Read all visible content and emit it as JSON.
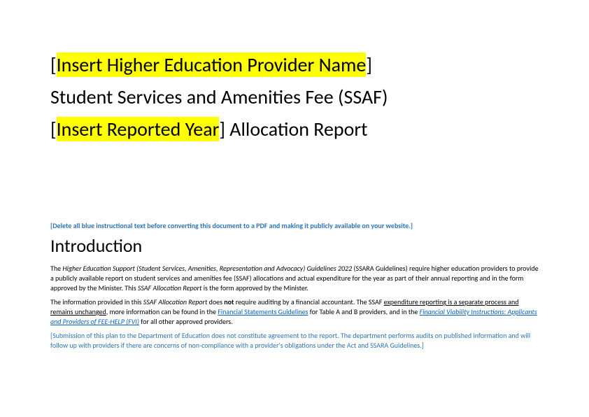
{
  "title": {
    "line1_prefix": "[",
    "line1_highlight": "Insert Higher Education Provider Name",
    "line1_suffix": "]",
    "line2": "Student Services and Amenities Fee (SSAF)",
    "line3_prefix": "[",
    "line3_highlight": "Insert Reported Year",
    "line3_suffix": "] Allocation Report"
  },
  "instruction_blue": "[Delete all blue instructional text before converting this document to a PDF and making it publicly available on your website.]",
  "heading_intro": "Introduction",
  "para1": {
    "t1": "The ",
    "italic1": "Higher Education Support (Student Services, Amenities, Representation and Advocacy) Guidelines 2022 ",
    "t2": "(SSARA Guidelines) require higher education providers to provide a publicly available report on student services and amenities fee (SSAF) allocations and actual expenditure for the year as part of their annual reporting and in the form approved by the Minister. This ",
    "italic2": "SSAF Allocation Report",
    "t3": " is the form approved by the Minister."
  },
  "para2": {
    "t1": "The information provided in this ",
    "italic1": "SSAF Allocation Report",
    "t2": " does ",
    "bold1": "not",
    "t3": " require auditing by a financial accountant. The SSAF ",
    "under1": "expenditure reporting is a separate process and remains unchanged",
    "t4": ", more information can be found in the ",
    "link1": "Financial Statements Guidelines",
    "t5": " for Table A and B providers, and in the ",
    "link2": "Financial Viability Instructions: Applicants and Providers of FEE-HELP ",
    "link2b": "(FVI)",
    "t6": " for all other approved providers."
  },
  "para3_blue": "[Submission of this plan to the Department of Education does not constitute agreement to the report. The department performs audits on published information and will follow up with providers if there are concerns of non-compliance with a provider's obligations under the Act and SSARA Guidelines.]"
}
